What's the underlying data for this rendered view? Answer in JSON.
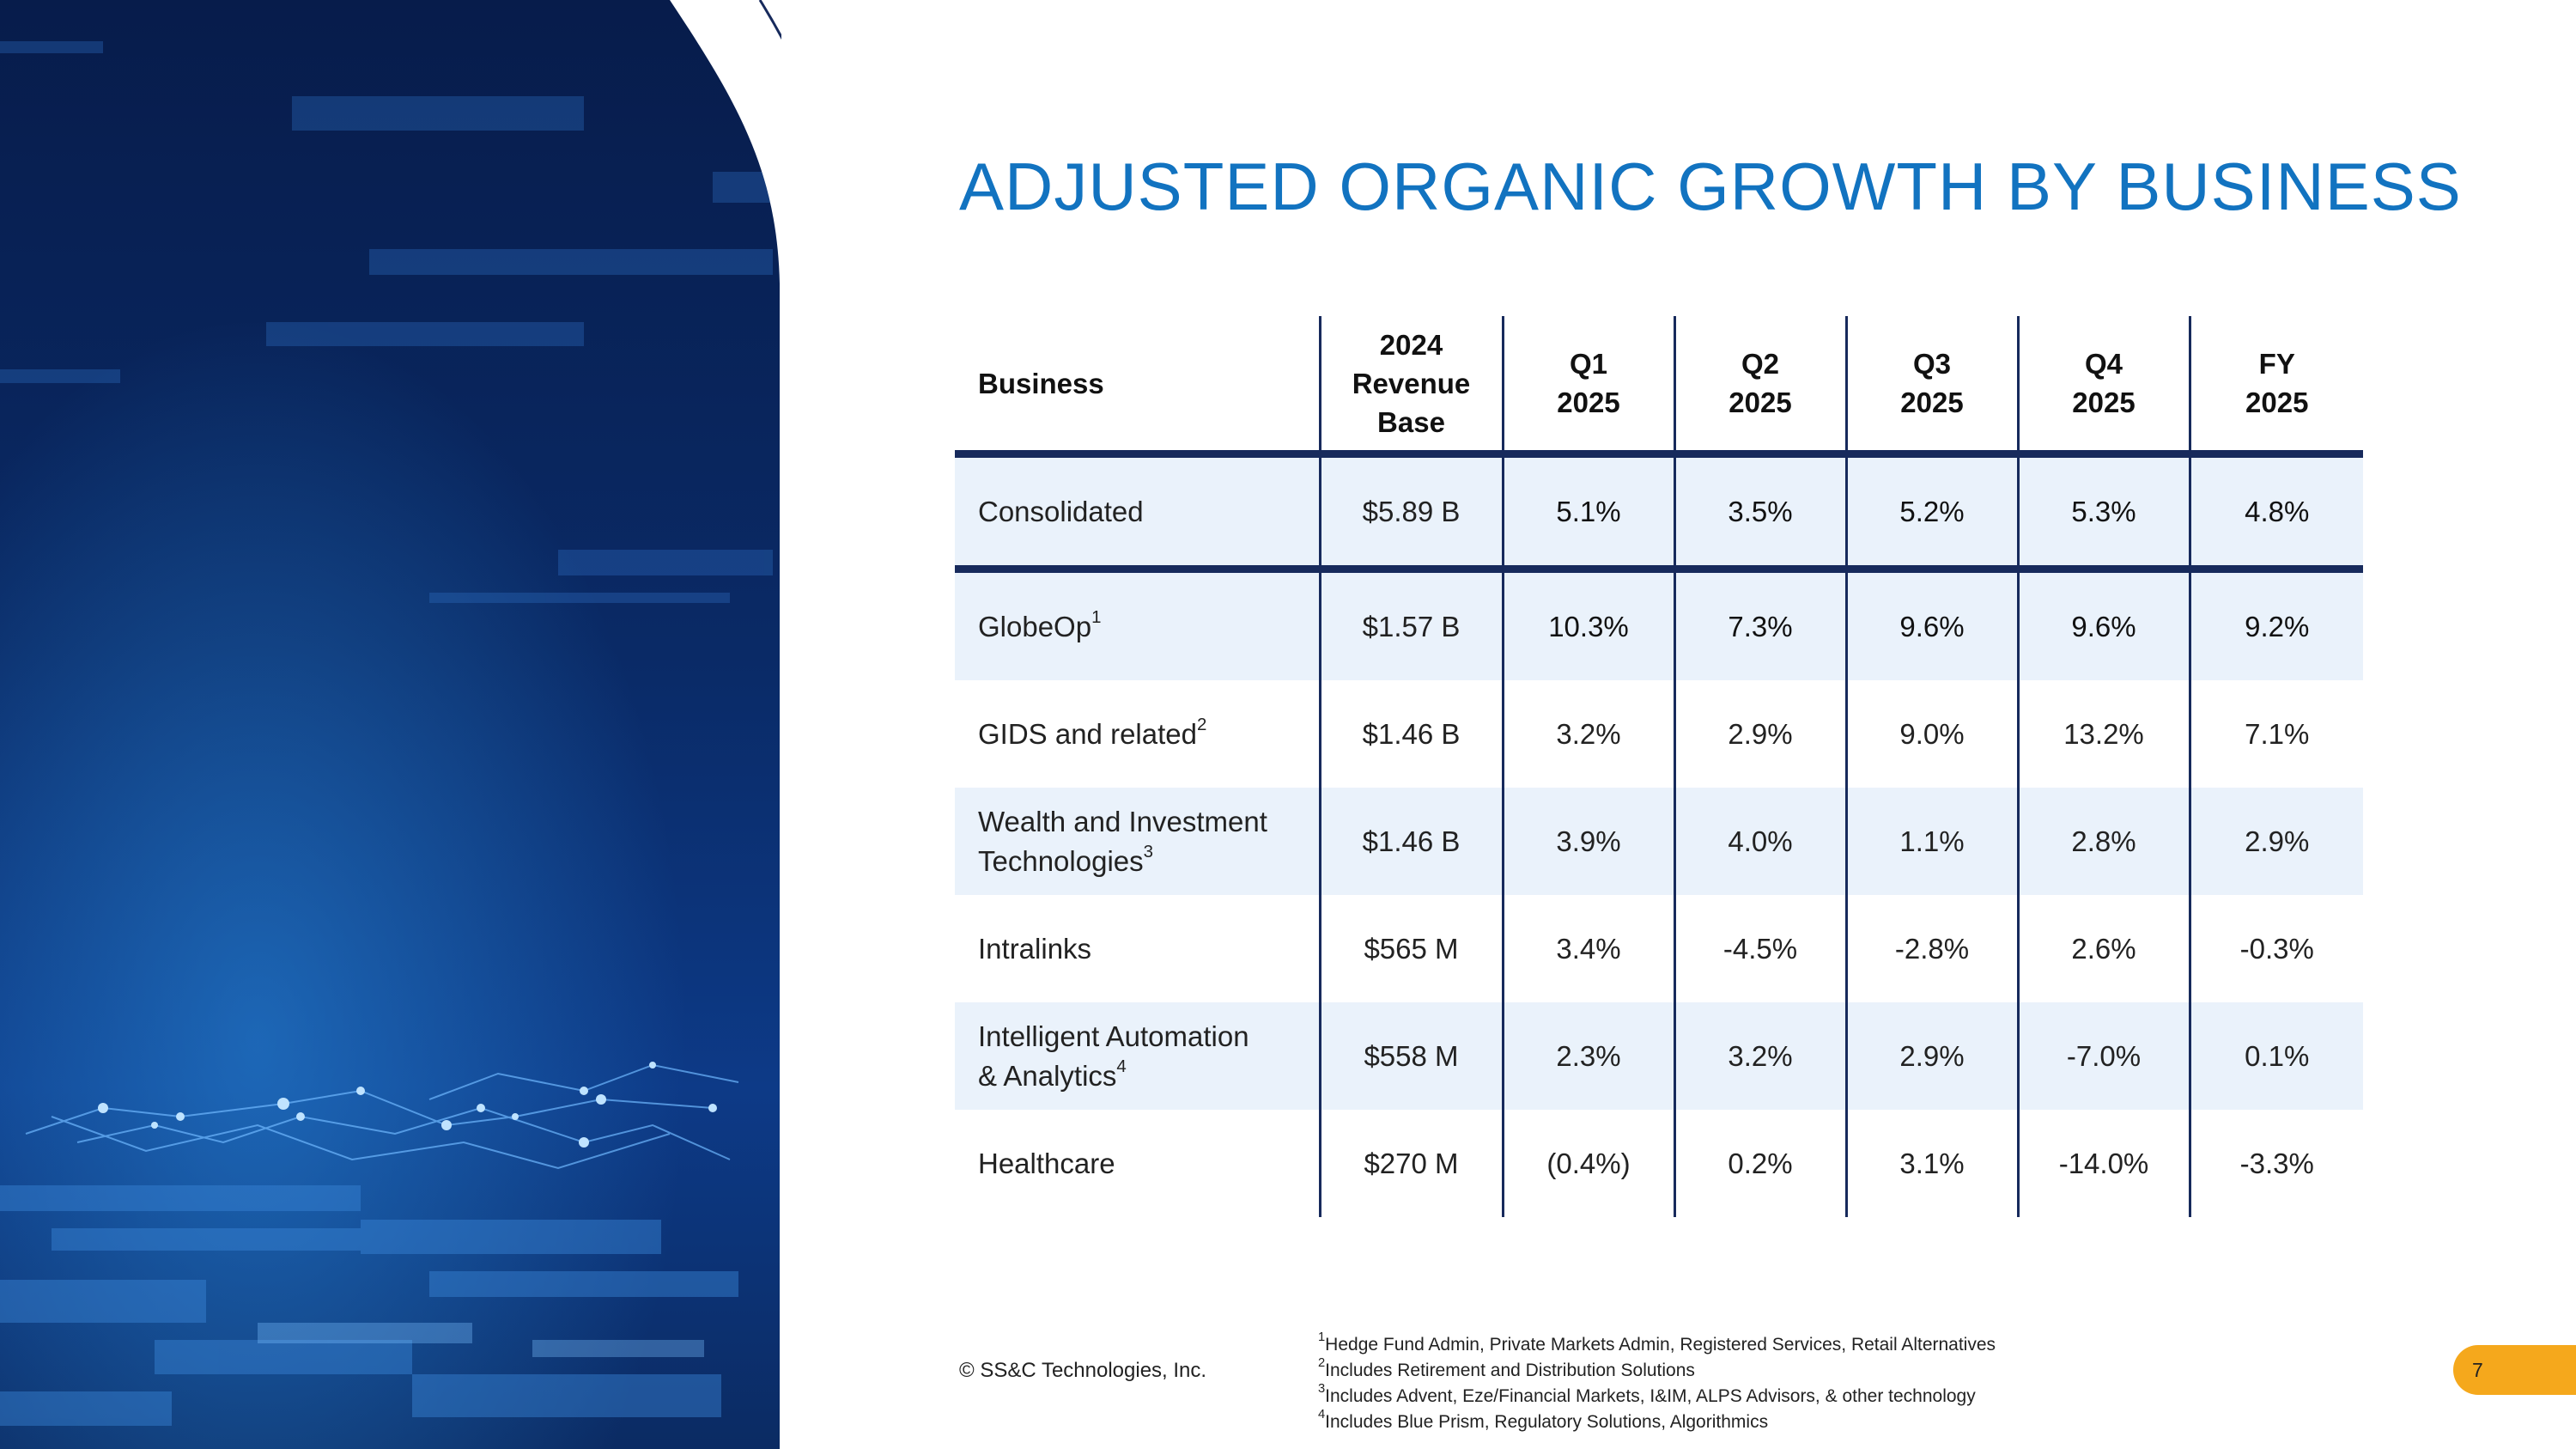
{
  "slide": {
    "title": "ADJUSTED ORGANIC GROWTH BY BUSINESS",
    "copyright": "© SS&C Technologies, Inc.",
    "page_number": "7"
  },
  "table": {
    "headers": {
      "business": "Business",
      "base_line1": "2024",
      "base_line2": "Revenue",
      "base_line3": "Base",
      "q1_line1": "Q1",
      "q1_line2": "2025",
      "q2_line1": "Q2",
      "q2_line2": "2025",
      "q3_line1": "Q3",
      "q3_line2": "2025",
      "q4_line1": "Q4",
      "q4_line2": "2025",
      "fy_line1": "FY",
      "fy_line2": "2025"
    },
    "rows": [
      {
        "line1": "Consolidated",
        "line2": "",
        "sup": "",
        "base": "$5.89 B",
        "q1": "5.1%",
        "q2": "3.5%",
        "q3": "5.2%",
        "q4": "5.3%",
        "fy": "4.8%"
      },
      {
        "line1": "GlobeOp",
        "line2": "",
        "sup": "1",
        "base": "$1.57 B",
        "q1": "10.3%",
        "q2": "7.3%",
        "q3": "9.6%",
        "q4": "9.6%",
        "fy": "9.2%"
      },
      {
        "line1": "GIDS and related",
        "line2": "",
        "sup": "2",
        "base": "$1.46 B",
        "q1": "3.2%",
        "q2": "2.9%",
        "q3": "9.0%",
        "q4": "13.2%",
        "fy": "7.1%"
      },
      {
        "line1": "Wealth and Investment",
        "line2": "Technologies",
        "sup": "3",
        "base": "$1.46 B",
        "q1": "3.9%",
        "q2": "4.0%",
        "q3": "1.1%",
        "q4": "2.8%",
        "fy": "2.9%"
      },
      {
        "line1": "Intralinks",
        "line2": "",
        "sup": "",
        "base": "$565 M",
        "q1": "3.4%",
        "q2": "-4.5%",
        "q3": "-2.8%",
        "q4": "2.6%",
        "fy": "-0.3%"
      },
      {
        "line1": "Intelligent Automation",
        "line2": "& Analytics",
        "sup": "4",
        "base": "$558 M",
        "q1": "2.3%",
        "q2": "3.2%",
        "q3": "2.9%",
        "q4": "-7.0%",
        "fy": "0.1%"
      },
      {
        "line1": "Healthcare",
        "line2": "",
        "sup": "",
        "base": "$270 M",
        "q1": "(0.4%)",
        "q2": "0.2%",
        "q3": "3.1%",
        "q4": "-14.0%",
        "fy": "-3.3%"
      }
    ]
  },
  "footnotes": [
    {
      "mark": "1",
      "text": "Hedge Fund Admin, Private Markets Admin, Registered Services, Retail Alternatives"
    },
    {
      "mark": "2",
      "text": "Includes Retirement and Distribution Solutions"
    },
    {
      "mark": "3",
      "text": "Includes Advent, Eze/Financial Markets, I&IM, ALPS Advisors, & other technology"
    },
    {
      "mark": "4",
      "text": "Includes Blue Prism, Regulatory Solutions, Algorithmics"
    }
  ],
  "colors": {
    "title_blue": "#1273c0",
    "rule_navy": "#172a5c",
    "row_shade": "#eaf2fb",
    "badge_orange": "#f5a81c"
  }
}
